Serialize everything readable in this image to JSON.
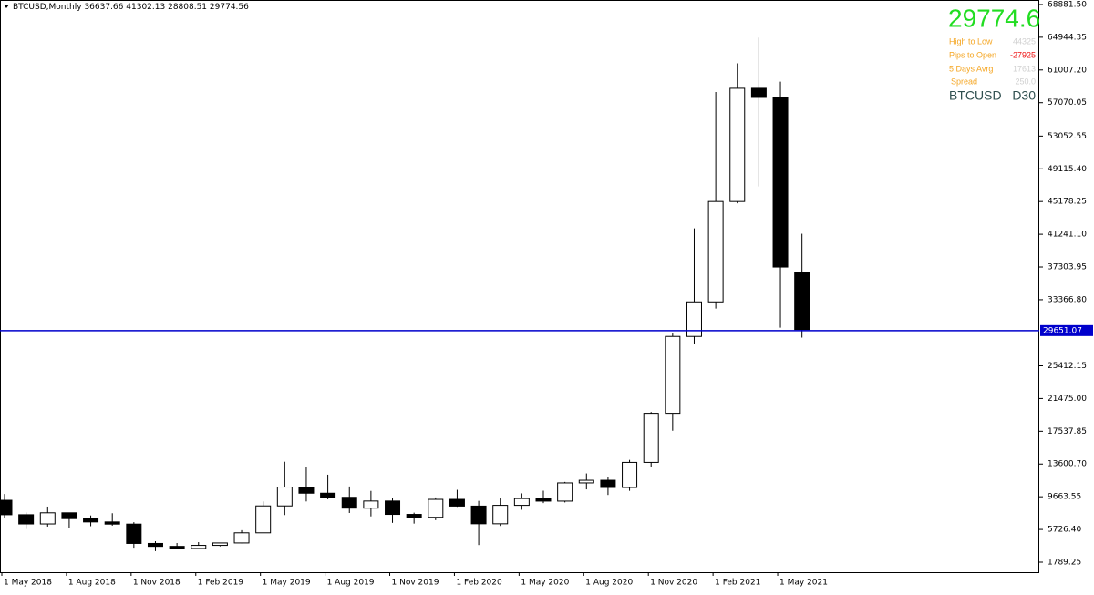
{
  "header": {
    "symbol": "BTCUSD,Monthly"
  },
  "info_panel": {
    "price": "29774.6",
    "rows": [
      {
        "label": "High to Low",
        "value": "44325"
      },
      {
        "label": "Pips to Open",
        "value": "-27925"
      },
      {
        "label": "5 Days Avrg",
        "value": "17613"
      },
      {
        "label": "Spread",
        "value": "250.0"
      }
    ],
    "symbol": "BTCUSD",
    "period": "D30"
  },
  "chart_data": {
    "type": "candlestick",
    "categories": [
      "1 May 2018",
      null,
      null,
      "1 Aug 2018",
      null,
      null,
      "1 Nov 2018",
      null,
      null,
      "1 Feb 2019",
      null,
      null,
      "1 May 2019",
      null,
      null,
      "1 Aug 2019",
      null,
      null,
      "1 Nov 2019",
      null,
      null,
      "1 Feb 2020",
      null,
      null,
      "1 May 2020",
      null,
      null,
      "1 Aug 2020",
      null,
      null,
      "1 Nov 2020",
      null,
      null,
      "1 Feb 2021",
      null,
      null,
      "1 May 2021",
      null
    ],
    "series": {
      "open": [
        9240,
        7500,
        6390,
        7730,
        7030,
        6630,
        6370,
        4040,
        3690,
        3440,
        3810,
        4100,
        5320,
        8560,
        10830,
        10090,
        9600,
        8290,
        9150,
        7540,
        7190,
        9350,
        8540,
        6410,
        8630,
        9450,
        9140,
        11330,
        11650,
        10780,
        13800,
        19700,
        28950,
        33110,
        45180,
        58800,
        57700,
        36637.66
      ],
      "high": [
        9990,
        7770,
        8480,
        7760,
        7410,
        7680,
        6600,
        4310,
        4090,
        4200,
        4100,
        5640,
        9100,
        13880,
        13190,
        12320,
        10900,
        10370,
        9510,
        7750,
        9580,
        10500,
        9170,
        9460,
        10070,
        10400,
        11450,
        12470,
        12060,
        14100,
        19860,
        29300,
        41950,
        58350,
        61800,
        64900,
        59600,
        41302.13
      ],
      "low": [
        7050,
        5780,
        6070,
        5880,
        6120,
        6180,
        3530,
        3120,
        3350,
        3400,
        3690,
        4050,
        5310,
        7460,
        9100,
        9360,
        7710,
        7300,
        6520,
        6430,
        6850,
        8450,
        3850,
        6150,
        8100,
        8900,
        8980,
        10550,
        9880,
        10380,
        13200,
        17600,
        28100,
        32310,
        44960,
        47000,
        30000,
        28808.51
      ],
      "close": [
        7500,
        6390,
        7730,
        7030,
        6630,
        6370,
        4040,
        3690,
        3440,
        3810,
        4100,
        5320,
        8560,
        10830,
        10090,
        9600,
        8290,
        9150,
        7540,
        7190,
        9350,
        8540,
        6410,
        8630,
        9450,
        9140,
        11330,
        11650,
        10780,
        13800,
        19700,
        28950,
        33110,
        45180,
        58800,
        57700,
        37300,
        29774.56
      ]
    },
    "up_color": "#ffffff",
    "down_color": "#000000",
    "price_line": 29651.07,
    "price_line_color": "#0000cc",
    "ylim": [
      583,
      69425
    ],
    "yticks": [
      {
        "value": 68881.5,
        "label": "68881.50"
      },
      64944.35,
      {
        "value": 61007.2,
        "label": "61007.20"
      },
      57070.05,
      53052.55,
      {
        "value": 49115.4,
        "label": "49115.40"
      },
      45178.25,
      {
        "value": 41241.1,
        "label": "41241.10"
      },
      37303.95,
      {
        "value": 33366.8,
        "label": "33366.80"
      },
      25412.15,
      {
        "value": 21475,
        "label": "21475.00"
      },
      17537.85,
      {
        "value": 13600.7,
        "label": "13600.70"
      },
      9663.55,
      {
        "value": 5726.4,
        "label": "5726.40"
      },
      1789.25
    ]
  }
}
